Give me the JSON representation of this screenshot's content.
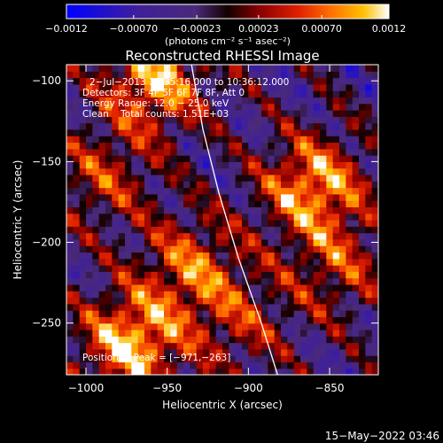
{
  "chart_data": {
    "type": "heatmap",
    "title": "Reconstructed RHESSI Image",
    "xlabel": "Heliocentric X (arcsec)",
    "ylabel": "Heliocentric Y (arcsec)",
    "xlim": [
      -1012,
      -820
    ],
    "ylim": [
      -282,
      -90
    ],
    "x_ticks": [
      -1000,
      -950,
      -900,
      -850
    ],
    "x_tick_labels": [
      "−1000",
      "−950",
      "−900",
      "−850"
    ],
    "y_ticks": [
      -100,
      -150,
      -200,
      -250
    ],
    "y_tick_labels": [
      "−100",
      "−150",
      "−200",
      "−250"
    ],
    "colorbar": {
      "tick_values": [
        -0.0012,
        -0.0007,
        -0.00023,
        0.00023,
        0.0007,
        0.0012
      ],
      "tick_labels": [
        "−0.0012",
        "−0.00070",
        "−0.00023",
        "0.00023",
        "0.00070",
        "0.0012"
      ],
      "units": "(photons cm⁻² s⁻¹ asec⁻²)",
      "colors": [
        "#0000ff",
        "#3f1f9a",
        "#4a2a7a",
        "#140000",
        "#8a0000",
        "#e02000",
        "#ff7000",
        "#ffc000",
        "#ffffff"
      ]
    },
    "annotations": [
      "2−Jul−2013 10:35:16.000 to 10:36:12.000",
      "Detectors: 3F 4F 5F 6F 7F 8F, Att 0",
      "Energy Range: 12.0 − 25.0 keV",
      "Clean    Total counts: 1.51E+03"
    ],
    "peak_label": "Position of Peak = [−971,−263]",
    "peak_position": [
      -971,
      -263
    ],
    "limb_curve": [
      [
        -935,
        -90
      ],
      [
        -928,
        -130
      ],
      [
        -918,
        -170
      ],
      [
        -906,
        -210
      ],
      [
        -892,
        -250
      ],
      [
        -882,
        -282
      ]
    ],
    "hot_spots": [
      {
        "x": -972,
        "y": -262,
        "value": 0.0012
      },
      {
        "x": -958,
        "y": -100,
        "value": 0.0011
      },
      {
        "x": -860,
        "y": -165,
        "value": 0.0011
      },
      {
        "x": -935,
        "y": -215,
        "value": 0.0008
      },
      {
        "x": -845,
        "y": -215,
        "value": 0.0006
      },
      {
        "x": -990,
        "y": -160,
        "value": 0.0006
      },
      {
        "x": -905,
        "y": -250,
        "value": 0.0005
      }
    ],
    "grid": false
  },
  "footer": {
    "timestamp": "15−May−2022 03:46"
  }
}
